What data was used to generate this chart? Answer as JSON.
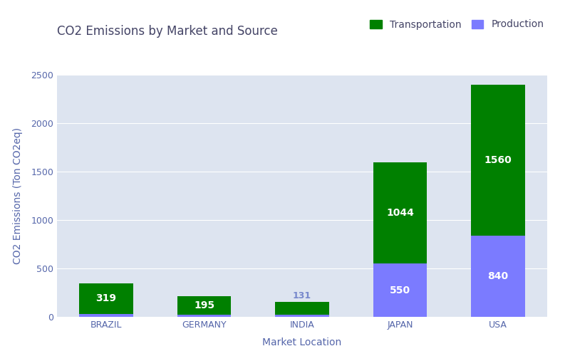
{
  "title": "CO2 Emissions by Market and Source",
  "xlabel": "Market Location",
  "ylabel": "CO2 Emissions (Ton CO2eq)",
  "categories": [
    "BRAZIL",
    "GERMANY",
    "INDIA",
    "JAPAN",
    "USA"
  ],
  "transportation": [
    319,
    195,
    131,
    1044,
    1560
  ],
  "production": [
    30,
    20,
    20,
    550,
    840
  ],
  "transportation_color": "#008000",
  "production_color": "#7b7bff",
  "fig_bg_color": "#ffffff",
  "plot_bg_color": "#dde4f0",
  "ylim": [
    0,
    2500
  ],
  "yticks": [
    0,
    500,
    1000,
    1500,
    2000,
    2500
  ],
  "title_fontsize": 12,
  "label_fontsize": 10,
  "tick_fontsize": 9,
  "bar_width": 0.55,
  "text_color_white": "#ffffff",
  "text_color_lightblue": "#7788cc",
  "axis_label_color": "#5566aa",
  "tick_label_color": "#5566aa"
}
